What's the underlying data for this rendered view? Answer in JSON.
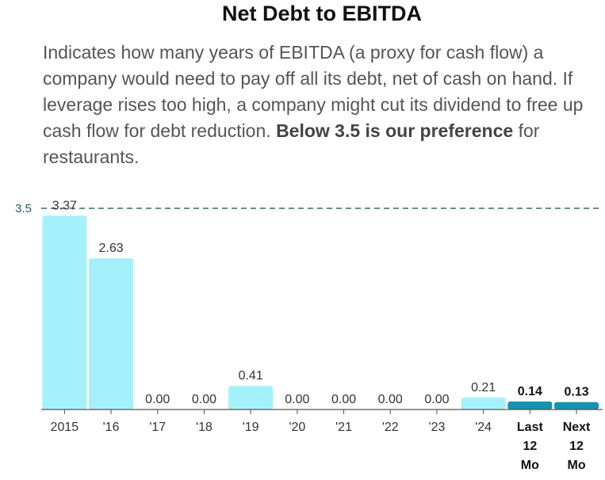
{
  "header": {
    "title": "Net Debt to EBITDA",
    "desc_text": "Indicates how many years of EBITDA (a proxy for cash flow) a company would need to pay off all its debt, net of cash on hand. If leverage rises too high, a company might cut its dividend to free up cash flow for debt reduction.",
    "desc_bold": "Below 3.5 is our preference",
    "desc_tail": "for restaurants."
  },
  "colors": {
    "historical": "#a5f1fb",
    "forecast": "#1592b0",
    "reference_line": "#2b6b70",
    "axis": "#555555"
  },
  "chart_data": {
    "type": "bar",
    "title": "Net Debt to EBITDA",
    "xlabel": "",
    "ylabel": "",
    "ylim": [
      0,
      3.5
    ],
    "reference_line": {
      "value": 3.5,
      "label": "3.5",
      "style": "dashed"
    },
    "categories": [
      {
        "label": "2015",
        "value": 3.37,
        "value_label": "3.37",
        "kind": "historical"
      },
      {
        "label": "'16",
        "value": 2.63,
        "value_label": "2.63",
        "kind": "historical"
      },
      {
        "label": "'17",
        "value": 0.0,
        "value_label": "0.00",
        "kind": "historical"
      },
      {
        "label": "'18",
        "value": 0.0,
        "value_label": "0.00",
        "kind": "historical"
      },
      {
        "label": "'19",
        "value": 0.41,
        "value_label": "0.41",
        "kind": "historical"
      },
      {
        "label": "'20",
        "value": 0.0,
        "value_label": "0.00",
        "kind": "historical"
      },
      {
        "label": "'21",
        "value": 0.0,
        "value_label": "0.00",
        "kind": "historical"
      },
      {
        "label": "'22",
        "value": 0.0,
        "value_label": "0.00",
        "kind": "historical"
      },
      {
        "label": "'23",
        "value": 0.0,
        "value_label": "0.00",
        "kind": "historical"
      },
      {
        "label": "'24",
        "value": 0.21,
        "value_label": "0.21",
        "kind": "historical"
      },
      {
        "label": "Last 12 Mo",
        "value": 0.14,
        "value_label": "0.14",
        "kind": "forecast"
      },
      {
        "label": "Next 12 Mo",
        "value": 0.13,
        "value_label": "0.13",
        "kind": "forecast"
      }
    ]
  }
}
